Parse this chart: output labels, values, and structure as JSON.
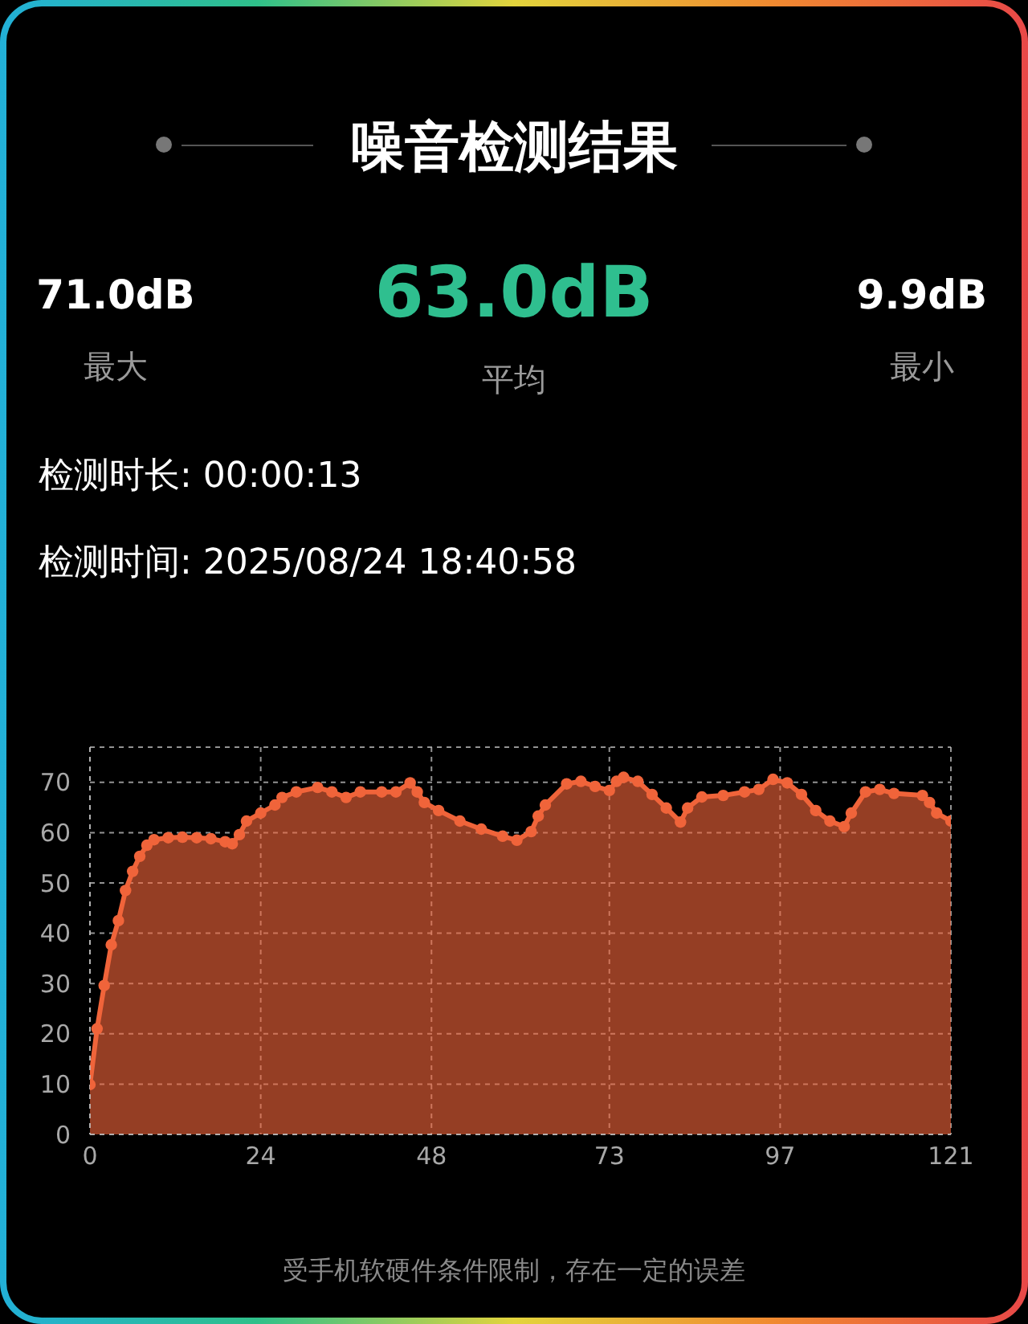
{
  "chart_data": {
    "type": "area",
    "title": "噪音检测结果",
    "annotations": [
      "71.0dB",
      "最大",
      "63.0dB",
      "平均",
      "9.9dB",
      "最小",
      "检测时长: 00:00:13",
      "检测时间: 2025/08/24 18:40:58",
      "受手机软硬件条件限制，存在一定的误差"
    ],
    "x": [
      0,
      1,
      2,
      3,
      4,
      5,
      6,
      7,
      8,
      9,
      11,
      13,
      15,
      17,
      19,
      20,
      21,
      22,
      24,
      26,
      27,
      29,
      32,
      34,
      36,
      38,
      41,
      43,
      45,
      46,
      47,
      49,
      52,
      55,
      58,
      60,
      62,
      63,
      64,
      67,
      69,
      71,
      73,
      74,
      75,
      77,
      79,
      81,
      83,
      84,
      86,
      89,
      92,
      94,
      96,
      98,
      100,
      102,
      104,
      106,
      107,
      109,
      111,
      113,
      117,
      118,
      119,
      121
    ],
    "values": [
      9.9,
      21,
      29.6,
      37.7,
      42.5,
      48.5,
      52.3,
      55.3,
      57.5,
      58.6,
      59.0,
      59.1,
      59.0,
      58.8,
      58.2,
      57.8,
      59.6,
      62.3,
      63.9,
      65.5,
      67,
      68.1,
      69,
      68.1,
      67,
      68.1,
      68.1,
      68.1,
      69.9,
      68.1,
      66,
      64.4,
      62.3,
      60.7,
      59.3,
      58.5,
      60.2,
      63.3,
      65.5,
      69.7,
      70.2,
      69.2,
      68.4,
      70.2,
      71.0,
      70.2,
      67.6,
      64.9,
      62.1,
      64.9,
      67.1,
      67.4,
      68.1,
      68.6,
      70.6,
      69.9,
      67.6,
      64.4,
      62.3,
      61.2,
      63.9,
      68.1,
      68.6,
      67.8,
      67.4,
      66,
      63.9,
      62.3
    ],
    "color": "#f0643a",
    "xlim": [
      0,
      121
    ],
    "xticks": [
      0,
      24,
      48,
      73,
      97,
      121
    ],
    "ylim": [
      0,
      77
    ],
    "yticks": [
      0,
      10,
      20,
      30,
      40,
      50,
      60,
      70
    ],
    "grid": true,
    "marker": "circle",
    "line_style": "solid"
  }
}
